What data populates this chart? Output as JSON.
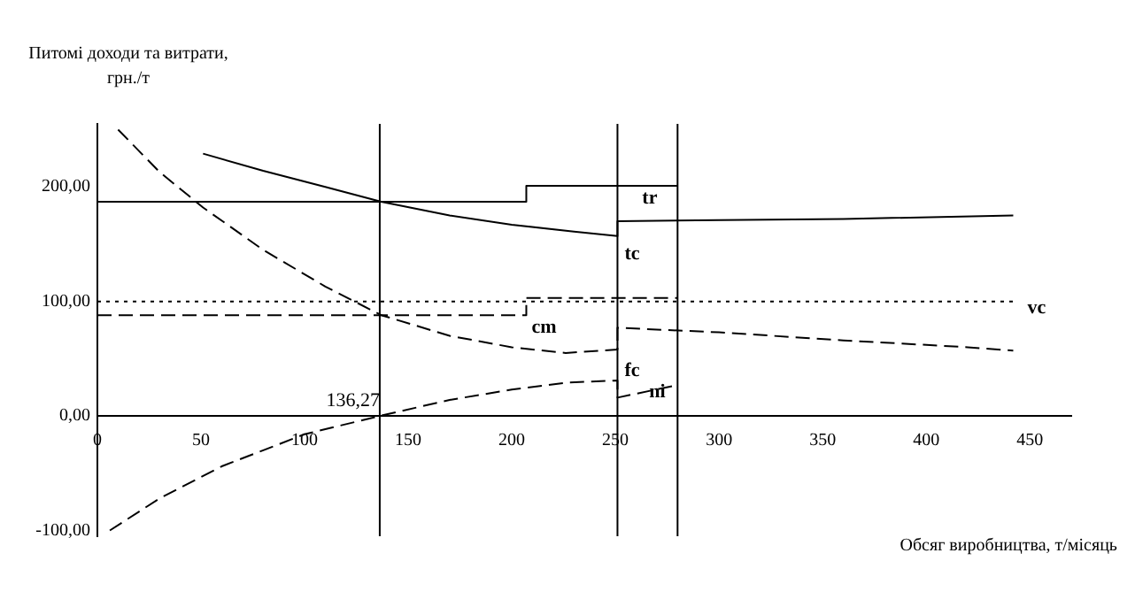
{
  "chart_data": {
    "type": "line",
    "xlabel": "Обсяг виробництва, т/місяць",
    "ylabel": "Питомі доходи та витрати, грн./т",
    "xlim": [
      0,
      470
    ],
    "ylim": [
      -105,
      255
    ],
    "xticks": [
      0,
      50,
      100,
      150,
      200,
      250,
      300,
      350,
      400,
      450
    ],
    "yticks": [
      {
        "value": -100,
        "label": "-100,00"
      },
      {
        "value": 0,
        "label": "0,00"
      },
      {
        "value": 100,
        "label": "100,00"
      },
      {
        "value": 200,
        "label": "200,00"
      }
    ],
    "grid": false,
    "legend": false,
    "series": [
      {
        "name": "tr",
        "color": "#000000",
        "line_style": "solid",
        "x": [
          0,
          207,
          207,
          280
        ],
        "values": [
          187,
          187,
          201,
          201
        ]
      },
      {
        "name": "tc",
        "color": "#000000",
        "line_style": "solid",
        "x": [
          51,
          80,
          110,
          137,
          170,
          200,
          230,
          251,
          251,
          300,
          360,
          442
        ],
        "values": [
          229,
          214,
          200,
          187,
          175,
          167,
          161,
          157,
          170,
          171,
          172,
          175
        ]
      },
      {
        "name": "vc",
        "color": "#000000",
        "line_style": "dotted",
        "x": [
          0,
          442
        ],
        "values": [
          100,
          100
        ]
      },
      {
        "name": "cm",
        "color": "#000000",
        "line_style": "dashed",
        "x": [
          0,
          207,
          207,
          280
        ],
        "values": [
          88,
          88,
          103,
          103
        ]
      },
      {
        "name": "fc",
        "color": "#000000",
        "line_style": "dashed",
        "x": [
          10,
          30,
          51,
          80,
          110,
          137,
          170,
          200,
          226,
          251,
          251,
          300,
          360,
          420,
          442
        ],
        "values": [
          250,
          213,
          182,
          145,
          113,
          88,
          70,
          60,
          55,
          58,
          77,
          73,
          66,
          60,
          57
        ]
      },
      {
        "name": "ni",
        "color": "#000000",
        "line_style": "dashed",
        "x": [
          6,
          30,
          60,
          100,
          136.27,
          170,
          200,
          226,
          251,
          251,
          280
        ],
        "values": [
          -100,
          -72,
          -44,
          -16,
          0,
          14,
          23,
          29,
          31,
          16,
          27
        ]
      }
    ],
    "ref_lines": [
      {
        "axis": "x",
        "value": 136.27
      },
      {
        "axis": "x",
        "value": 251
      },
      {
        "axis": "x",
        "value": 280
      }
    ],
    "annotations": [
      {
        "text": "136,27",
        "x": 136.27,
        "y": 0
      }
    ]
  }
}
